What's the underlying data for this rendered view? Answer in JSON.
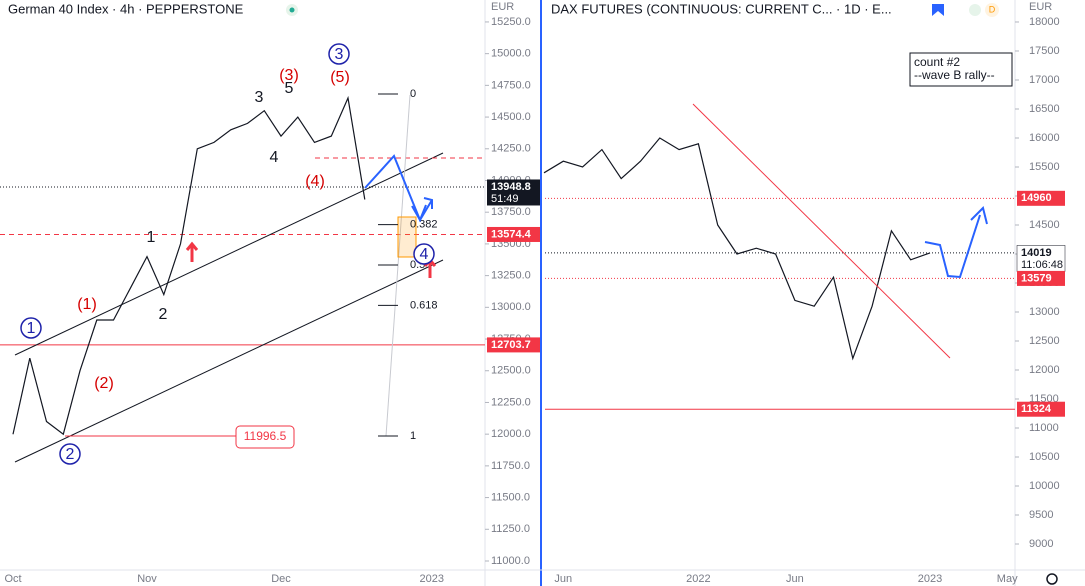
{
  "chart_data": [
    {
      "type": "line",
      "title": "German 40 Index · 4h · PEPPERSTONE",
      "currency": "EUR",
      "categories": [
        "Oct",
        null,
        null,
        null,
        null,
        null,
        null,
        null,
        "Nov",
        null,
        null,
        null,
        null,
        null,
        null,
        null,
        "Dec",
        null,
        null,
        null,
        null,
        null,
        null,
        null,
        null,
        "2023"
      ],
      "values": [
        12000,
        12600,
        12100,
        12000,
        12500,
        12900,
        12900,
        13150,
        13400,
        13100,
        13500,
        14250,
        14300,
        14400,
        14450,
        14550,
        14350,
        14500,
        14300,
        14350,
        14650,
        13850,
        null,
        null,
        null,
        null
      ],
      "color": "#131722",
      "ylim": [
        10929,
        15423
      ],
      "yticks": [
        {
          "value": 11000,
          "label": "11000.0"
        },
        {
          "value": 11250,
          "label": "11250.0"
        },
        {
          "value": 11500,
          "label": "11500.0"
        },
        {
          "value": 11750,
          "label": "11750.0"
        },
        {
          "value": 12000,
          "label": "12000.0"
        },
        {
          "value": 12250,
          "label": "12250.0"
        },
        {
          "value": 12500,
          "label": "12500.0"
        },
        {
          "value": 12750,
          "label": "12750.0"
        },
        {
          "value": 13000,
          "label": "13000.0"
        },
        {
          "value": 13250,
          "label": "13250.0"
        },
        {
          "value": 13500,
          "label": "13500.0"
        },
        {
          "value": 13750,
          "label": "13750.0"
        },
        {
          "value": 14000,
          "label": "14000.0"
        },
        {
          "value": 14250,
          "label": "14250.0"
        },
        {
          "value": 14500,
          "label": "14500.0"
        },
        {
          "value": 14750,
          "label": "14750.0"
        },
        {
          "value": 15000,
          "label": "15000.0"
        },
        {
          "value": 15250,
          "label": "15250.0"
        }
      ],
      "levels": [
        {
          "value": 13948.8,
          "style": "dotted",
          "color": "#131722",
          "countdown": "51:49"
        },
        {
          "value": 13574.4,
          "style": "dashed",
          "color": "#f23645"
        },
        {
          "value": 12703.7,
          "style": "solid",
          "color": "#f23645"
        }
      ],
      "low_label": "11996.5",
      "fib_levels": [
        0,
        0.382,
        0.5,
        0.618,
        1
      ],
      "annotations": [
        {
          "text": "3",
          "color": "#1e22aa",
          "circled": true
        },
        {
          "text": "(5)",
          "color": "#d50000"
        },
        {
          "text": "(3)",
          "color": "#d50000"
        },
        {
          "text": "5",
          "color": "#131722"
        },
        {
          "text": "3",
          "color": "#131722"
        },
        {
          "text": "4",
          "color": "#131722"
        },
        {
          "text": "(4)",
          "color": "#d50000"
        },
        {
          "text": "1",
          "color": "#131722"
        },
        {
          "text": "2",
          "color": "#131722"
        },
        {
          "text": "(1)",
          "color": "#d50000"
        },
        {
          "text": "(2)",
          "color": "#d50000"
        },
        {
          "text": "1",
          "color": "#1e22aa",
          "circled": true
        },
        {
          "text": "2",
          "color": "#1e22aa",
          "circled": true
        },
        {
          "text": "4",
          "color": "#1e22aa",
          "circled": true
        }
      ]
    },
    {
      "type": "line",
      "title": "DAX FUTURES (CONTINUOUS: CURRENT C... · 1D · E...",
      "currency": "EUR",
      "categories": [
        null,
        "Jun",
        null,
        null,
        null,
        null,
        null,
        null,
        "2022",
        null,
        null,
        null,
        null,
        "Jun",
        null,
        null,
        null,
        null,
        null,
        null,
        "2023",
        null,
        null,
        null,
        "May"
      ],
      "values": [
        15400,
        15600,
        15500,
        15800,
        15300,
        15600,
        16000,
        15800,
        15900,
        14500,
        14000,
        14100,
        14000,
        13200,
        13100,
        13600,
        12200,
        13100,
        14400,
        13900,
        14019,
        null,
        null,
        null,
        null
      ],
      "color": "#131722",
      "ylim": [
        8552,
        18379
      ],
      "yticks": [
        9000,
        9500,
        10000,
        10500,
        11000,
        11500,
        12000,
        12500,
        13000,
        13500,
        14000,
        14500,
        15000,
        15500,
        16000,
        16500,
        17000,
        17500,
        18000
      ],
      "levels": [
        {
          "value": 14960,
          "style": "dotted",
          "color": "#f23645"
        },
        {
          "value": 14019,
          "style": "dotted",
          "color": "#131722",
          "countdown": "11:06:48",
          "label_bg": "#ffffff"
        },
        {
          "value": 13579,
          "style": "dotted",
          "color": "#f23645"
        },
        {
          "value": 11324,
          "style": "solid",
          "color": "#f23645"
        }
      ],
      "note": [
        "count #2",
        "--wave B rally--"
      ]
    }
  ]
}
